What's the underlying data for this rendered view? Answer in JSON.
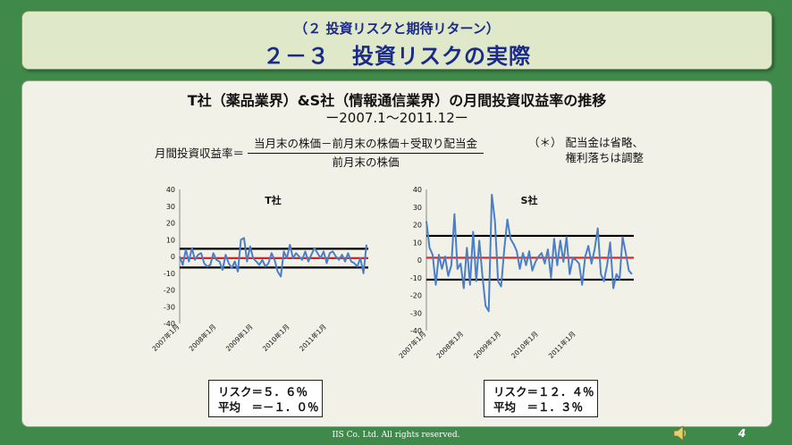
{
  "header": {
    "subtitle": "（２ 投資リスクと期待リターン）",
    "title": "２－３　投資リスクの実際"
  },
  "content": {
    "title": "T社（薬品業界）&S社（情報通信業界）の月間投資収益率の推移",
    "period": "ー2007.1～2011.12ー",
    "formula": {
      "label": "月間投資収益率＝",
      "numerator": "当月末の株価－前月末の株価＋受取り配当金",
      "denominator": "前月末の株価"
    },
    "note": "（＊） 配当金は省略、\n　　　 権利落ちは調整"
  },
  "stats": {
    "t": {
      "risk": "リスク＝５．６％",
      "mean": "平均　＝－１．０％"
    },
    "s": {
      "risk": "リスク＝１２．４％",
      "mean": "平均　＝１．３％"
    }
  },
  "chart_data": [
    {
      "type": "line",
      "title": "T社",
      "ylim": [
        -40,
        40
      ],
      "yticks": [
        40,
        30,
        20,
        10,
        0,
        -10,
        -20,
        -30,
        -40
      ],
      "xticks": [
        "2007年1月",
        "2008年1月",
        "2009年1月",
        "2010年1月",
        "2011年1月"
      ],
      "series": [
        {
          "color": "#4a7fc8",
          "values": [
            0,
            -5,
            4,
            -3,
            5,
            -2,
            1,
            2,
            -4,
            -6,
            -5,
            2,
            -2,
            -3,
            -8,
            1,
            -4,
            -7,
            -3,
            -9,
            10,
            11,
            -3,
            6,
            -1,
            -3,
            -5,
            -2,
            -6,
            -4,
            2,
            -2,
            -9,
            -12,
            3,
            -1,
            7,
            -1,
            2,
            0,
            -2,
            3,
            -3,
            1,
            5,
            2,
            -1,
            3,
            -4,
            2,
            3,
            0,
            -2,
            1,
            -3,
            2,
            -3,
            -4,
            -6,
            -1,
            -10,
            7
          ]
        }
      ],
      "reference_lines": [
        {
          "label": "mean",
          "value": -1.0,
          "color": "#e02020"
        },
        {
          "label": "mean+risk",
          "value": 4.6,
          "color": "#000000"
        },
        {
          "label": "mean-risk",
          "value": -6.6,
          "color": "#000000"
        }
      ]
    },
    {
      "type": "line",
      "title": "S社",
      "ylim": [
        -40,
        40
      ],
      "yticks": [
        40,
        30,
        20,
        10,
        0,
        -10,
        -20,
        -30,
        -40
      ],
      "xticks": [
        "2007年1月",
        "2008年1月",
        "2009年1月",
        "2010年1月",
        "2011年1月"
      ],
      "series": [
        {
          "color": "#4a7fc8",
          "values": [
            22,
            7,
            3,
            -14,
            3,
            -5,
            2,
            -9,
            -3,
            26,
            -5,
            -2,
            -16,
            7,
            -14,
            16,
            -12,
            11,
            -9,
            -26,
            -29,
            37,
            22,
            -12,
            -15,
            6,
            23,
            12,
            9,
            5,
            -5,
            4,
            -3,
            5,
            -6,
            -1,
            2,
            4,
            -2,
            6,
            -10,
            12,
            -3,
            11,
            -1,
            13,
            -8,
            1,
            0,
            -2,
            -14,
            2,
            8,
            -2,
            6,
            18,
            -8,
            -12,
            -3,
            10,
            -16,
            -8,
            -11,
            13,
            4,
            -6,
            -8
          ]
        }
      ],
      "reference_lines": [
        {
          "label": "mean",
          "value": 1.3,
          "color": "#e02020"
        },
        {
          "label": "mean+risk",
          "value": 13.7,
          "color": "#000000"
        },
        {
          "label": "mean-risk",
          "value": -11.1,
          "color": "#000000"
        }
      ]
    }
  ],
  "footer": {
    "copyright": "IIS Co. Ltd. All rights reserved.",
    "page": "4"
  }
}
